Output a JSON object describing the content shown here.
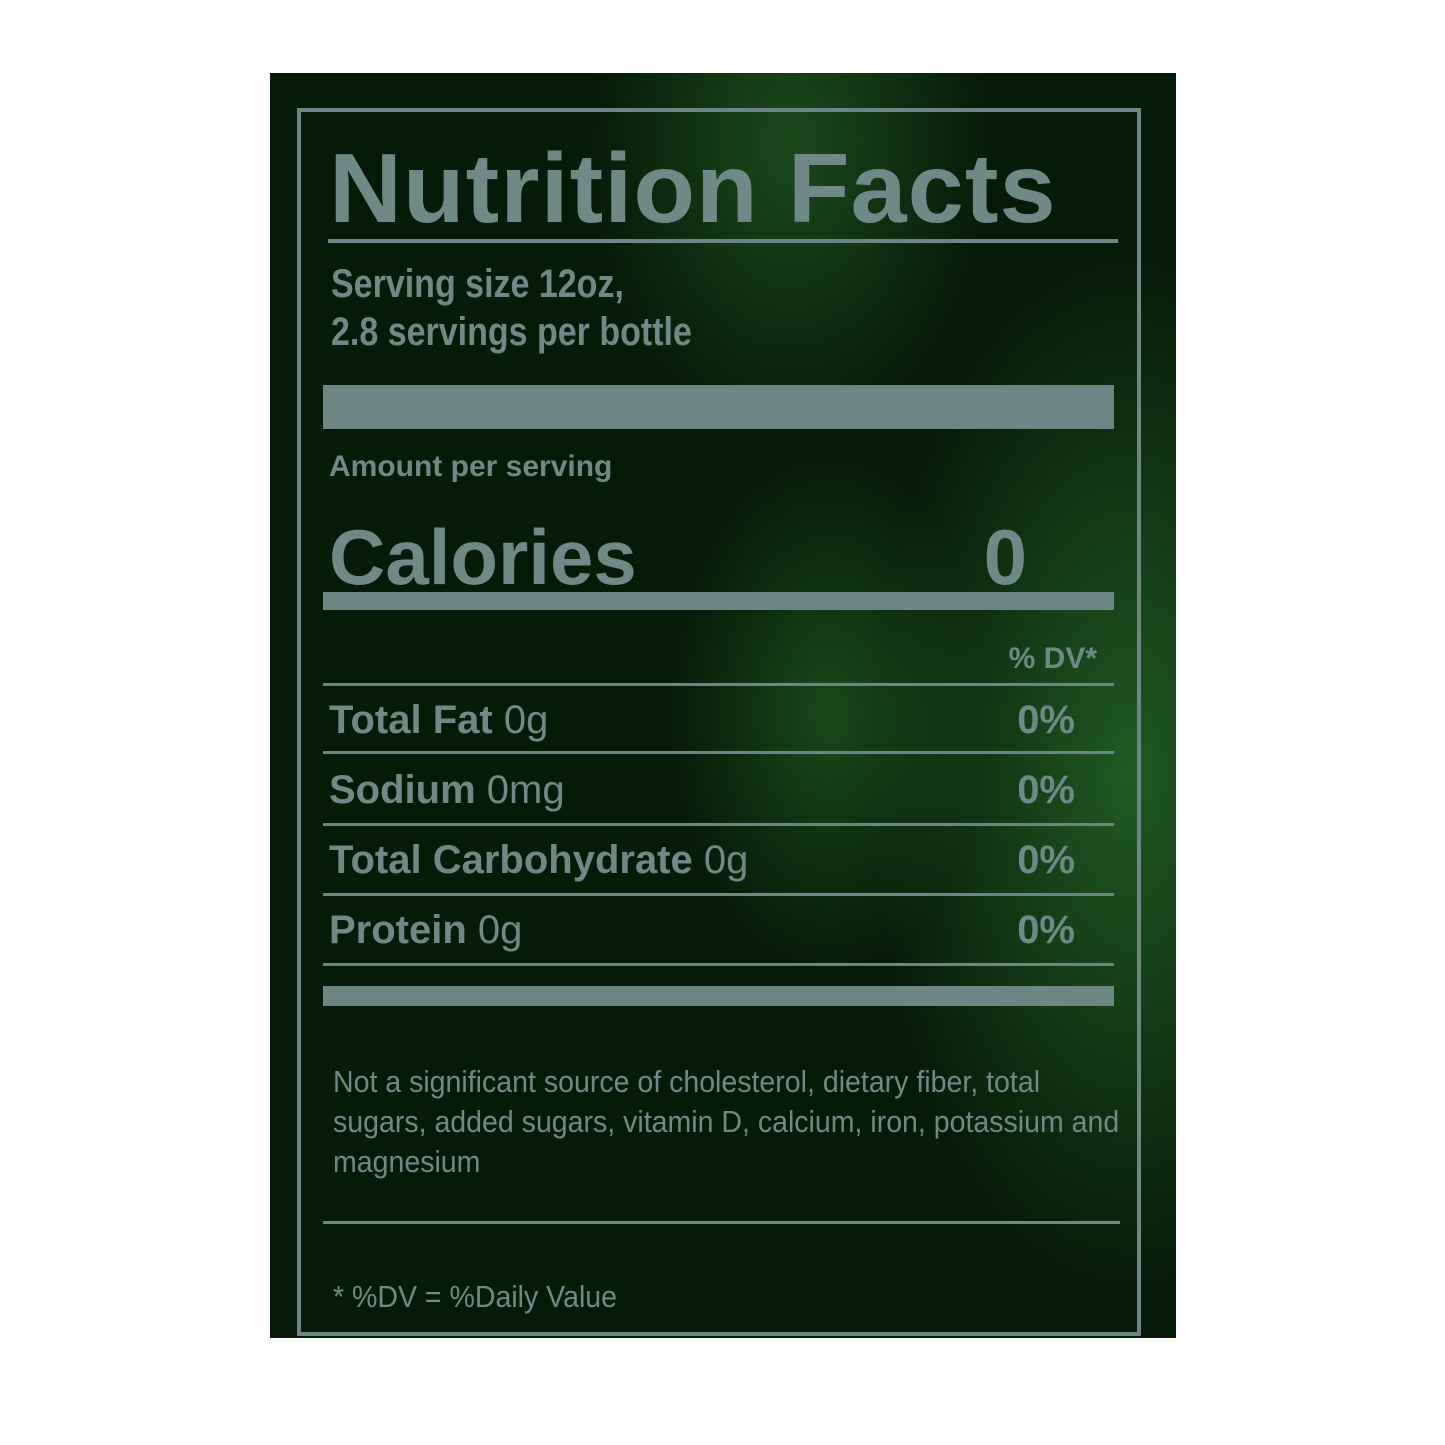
{
  "label": {
    "title": "Nutrition Facts",
    "serving_size": "Serving size 12oz,",
    "servings_per_container": "2.8 servings per bottle",
    "amount_per_serving": "Amount per serving",
    "calories_label": "Calories",
    "calories_value": "0",
    "dv_header": "% DV*",
    "nutrients": [
      {
        "name": "Total Fat",
        "amount": "0g",
        "dv": "0%"
      },
      {
        "name": "Sodium",
        "amount": "0mg",
        "dv": "0%"
      },
      {
        "name": "Total Carbohydrate",
        "amount": "0g",
        "dv": "0%"
      },
      {
        "name": "Protein",
        "amount": "0g",
        "dv": "0%"
      }
    ],
    "not_significant_note": "Not a significant source of cholesterol, dietary fiber, total sugars, added sugars, vitamin D, calcium, iron, potassium and magnesium",
    "footnote": "* %DV = %Daily Value"
  },
  "colors": {
    "background": "#061a08",
    "text": "#6f8a86"
  }
}
